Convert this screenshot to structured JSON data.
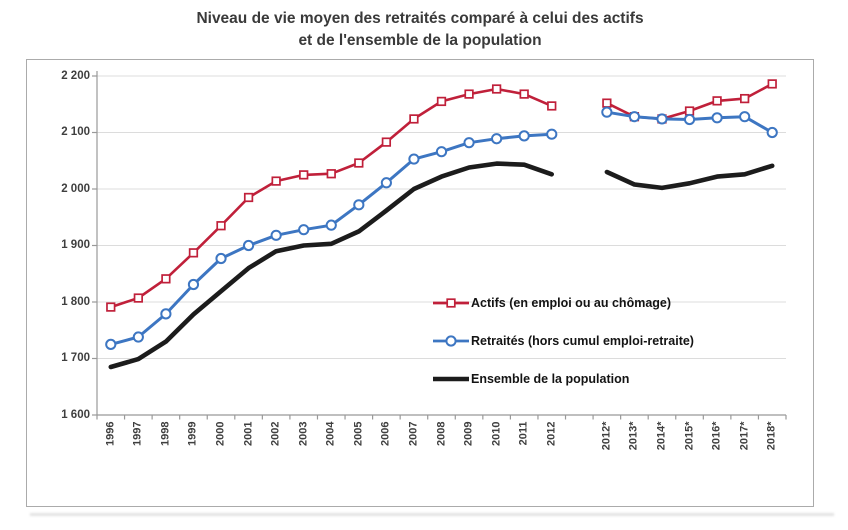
{
  "title": {
    "line1": "Niveau de vie moyen des retraités comparé à celui des actifs",
    "line2": "et de l'ensemble de la population"
  },
  "colors": {
    "actifs_red": "#c0203a",
    "retraites_blue": "#3d76c2",
    "ensemble_black": "#1c1c1c",
    "gridline": "#dcdcdc",
    "axis": "#999999",
    "frame_border": "#ababab",
    "label_text": "#3f3f3f",
    "title_text": "#3a3a3a"
  },
  "chart_data": {
    "type": "line",
    "title": "Niveau de vie moyen des retraités comparé à celui des actifs et de l'ensemble de la population",
    "xlabel": "",
    "ylabel": "",
    "ylim": [
      1600,
      2200
    ],
    "grid": true,
    "legend_position": "inside-right-lower",
    "y_ticks": [
      1600,
      1700,
      1800,
      1900,
      2000,
      2100,
      2200
    ],
    "y_tick_labels": [
      "1 600",
      "1 700",
      "1 800",
      "1 900",
      "2 000",
      "2 100",
      "2 200"
    ],
    "categories": [
      "1996",
      "1997",
      "1998",
      "1999",
      "2000",
      "2001",
      "2002",
      "2003",
      "2004",
      "2005",
      "2006",
      "2007",
      "2008",
      "2009",
      "2010",
      "2011",
      "2012",
      "",
      "2012*",
      "2013*",
      "2014*",
      "2015*",
      "2016*",
      "2017*",
      "2018*"
    ],
    "gap_note": "empty slot between observed series (1996-2012) and projections (2012*-2018*)",
    "series": [
      {
        "name": "Actifs (en emploi ou au chômage)",
        "color": "#c0203a",
        "marker": "square",
        "line_width": 2.6,
        "values": [
          1791,
          1807,
          1841,
          1887,
          1935,
          1985,
          2014,
          2025,
          2027,
          2046,
          2083,
          2124,
          2155,
          2168,
          2177,
          2168,
          2147,
          null,
          2152,
          2128,
          2124,
          2138,
          2156,
          2160,
          2186
        ]
      },
      {
        "name": "Retraités (hors cumul emploi-retraite)",
        "color": "#3d76c2",
        "marker": "circle",
        "line_width": 3,
        "values": [
          1725,
          1738,
          1779,
          1831,
          1877,
          1900,
          1918,
          1928,
          1936,
          1972,
          2011,
          2053,
          2066,
          2082,
          2089,
          2094,
          2097,
          null,
          2136,
          2128,
          2124,
          2123,
          2126,
          2128,
          2100
        ]
      },
      {
        "name": "Ensemble de la population",
        "color": "#1c1c1c",
        "marker": "none",
        "line_width": 4.6,
        "values": [
          1685,
          1699,
          1730,
          1778,
          1819,
          1860,
          1890,
          1900,
          1903,
          1925,
          1962,
          2000,
          2022,
          2038,
          2045,
          2043,
          2026,
          null,
          2030,
          2008,
          2002,
          2010,
          2022,
          2026,
          2041
        ]
      }
    ]
  }
}
